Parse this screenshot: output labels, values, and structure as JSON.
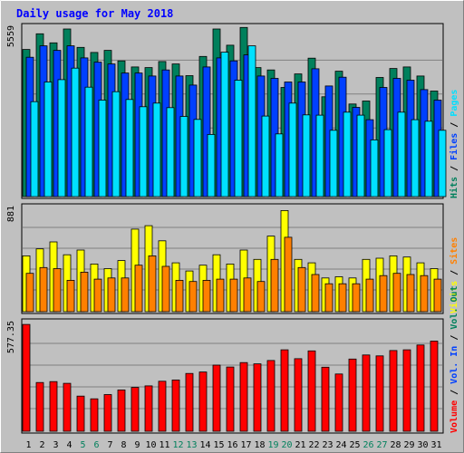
{
  "colors": {
    "background": "#c0c0c0",
    "title": "#0000ff",
    "hits": "#00805c",
    "files": "#0040ff",
    "pages": "#00e0ff",
    "visits": "#ffff00",
    "sites": "#ff8000",
    "volume": "#ff0000",
    "grid": "#808080",
    "panel_border": "#000000",
    "tick_normal": "#000000",
    "tick_weekend": "#00805c",
    "legend_separator": "#000000"
  },
  "chart_data": [
    {
      "type": "bar",
      "title": "Daily usage for May 2018",
      "ymax_label": "5559",
      "ylim": [
        0,
        5559
      ],
      "categories": [
        "1",
        "2",
        "3",
        "4",
        "5",
        "6",
        "7",
        "8",
        "9",
        "10",
        "11",
        "12",
        "13",
        "14",
        "15",
        "16",
        "17",
        "18",
        "19",
        "20",
        "21",
        "22",
        "23",
        "24",
        "25",
        "26",
        "27",
        "28",
        "29",
        "30",
        "31"
      ],
      "weekend_categories": [
        "5",
        "6",
        "12",
        "13",
        "19",
        "20",
        "26",
        "27"
      ],
      "grid": true,
      "legend": [
        {
          "label": "Hits",
          "color_key": "hits"
        },
        {
          "label": "Files",
          "color_key": "files"
        },
        {
          "label": "Pages",
          "color_key": "pages"
        }
      ],
      "legend_separator": " / ",
      "series": [
        {
          "name": "Hits",
          "color_key": "hits",
          "values": [
            4880,
            5400,
            5100,
            5560,
            4950,
            4780,
            4850,
            4500,
            4300,
            4280,
            4480,
            4400,
            4010,
            4650,
            5560,
            5020,
            5610,
            4280,
            4200,
            3620,
            4070,
            4590,
            3310,
            4160,
            3070,
            3170,
            3950,
            4250,
            4300,
            4000,
            3500
          ]
        },
        {
          "name": "Files",
          "color_key": "files",
          "values": [
            4620,
            5000,
            4850,
            5000,
            4600,
            4460,
            4400,
            4100,
            4100,
            4000,
            4200,
            4000,
            3700,
            4300,
            4600,
            4500,
            4700,
            4000,
            3920,
            3800,
            3800,
            4240,
            3670,
            3960,
            2960,
            2550,
            3620,
            3920,
            3860,
            3550,
            3200
          ]
        },
        {
          "name": "Pages",
          "color_key": "pages",
          "values": [
            3150,
            3800,
            3880,
            4260,
            3630,
            3200,
            3480,
            3220,
            2980,
            3100,
            2950,
            2660,
            2560,
            2060,
            4790,
            3860,
            5000,
            2670,
            2080,
            3100,
            2710,
            2700,
            2200,
            2800,
            2700,
            1880,
            2220,
            2800,
            2550,
            2500,
            2200
          ]
        }
      ]
    },
    {
      "type": "bar",
      "ymax_label": "881",
      "ylim": [
        0,
        881
      ],
      "categories": [
        "1",
        "2",
        "3",
        "4",
        "5",
        "6",
        "7",
        "8",
        "9",
        "10",
        "11",
        "12",
        "13",
        "14",
        "15",
        "16",
        "17",
        "18",
        "19",
        "20",
        "21",
        "22",
        "23",
        "24",
        "25",
        "26",
        "27",
        "28",
        "29",
        "30",
        "31"
      ],
      "grid": true,
      "legend": [
        {
          "label": "Visits",
          "color_key": "visits"
        },
        {
          "label": "Sites",
          "color_key": "sites"
        }
      ],
      "legend_separator": " / ",
      "series": [
        {
          "name": "Visits",
          "color_key": "visits",
          "values": [
            480,
            540,
            600,
            490,
            530,
            410,
            370,
            440,
            710,
            740,
            610,
            420,
            350,
            400,
            490,
            410,
            530,
            450,
            650,
            870,
            450,
            420,
            290,
            300,
            290,
            450,
            460,
            480,
            470,
            420,
            370
          ]
        },
        {
          "name": "Sites",
          "color_key": "sites",
          "values": [
            330,
            380,
            370,
            270,
            340,
            280,
            290,
            290,
            400,
            480,
            390,
            270,
            260,
            270,
            280,
            280,
            290,
            260,
            450,
            640,
            380,
            320,
            240,
            240,
            240,
            280,
            310,
            330,
            320,
            310,
            280
          ]
        }
      ]
    },
    {
      "type": "bar",
      "ymax_label": "577.35",
      "ylim": [
        0,
        577.35
      ],
      "categories": [
        "1",
        "2",
        "3",
        "4",
        "5",
        "6",
        "7",
        "8",
        "9",
        "10",
        "11",
        "12",
        "13",
        "14",
        "15",
        "16",
        "17",
        "18",
        "19",
        "20",
        "21",
        "22",
        "23",
        "24",
        "25",
        "26",
        "27",
        "28",
        "29",
        "30",
        "31"
      ],
      "grid": true,
      "legend": [
        {
          "label": "Volume",
          "color_key": "volume"
        },
        {
          "label": "Vol. In",
          "color_key": "files"
        },
        {
          "label": "Vol. Out",
          "color_key": "hits"
        }
      ],
      "legend_separator": " / ",
      "series": [
        {
          "name": "Volume",
          "color_key": "volume",
          "values": [
            577,
            263,
            268,
            259,
            190,
            175,
            198,
            223,
            237,
            245,
            270,
            277,
            312,
            320,
            357,
            347,
            371,
            364,
            382,
            440,
            392,
            434,
            346,
            309,
            390,
            412,
            407,
            436,
            440,
            466,
            487
          ]
        }
      ]
    }
  ]
}
